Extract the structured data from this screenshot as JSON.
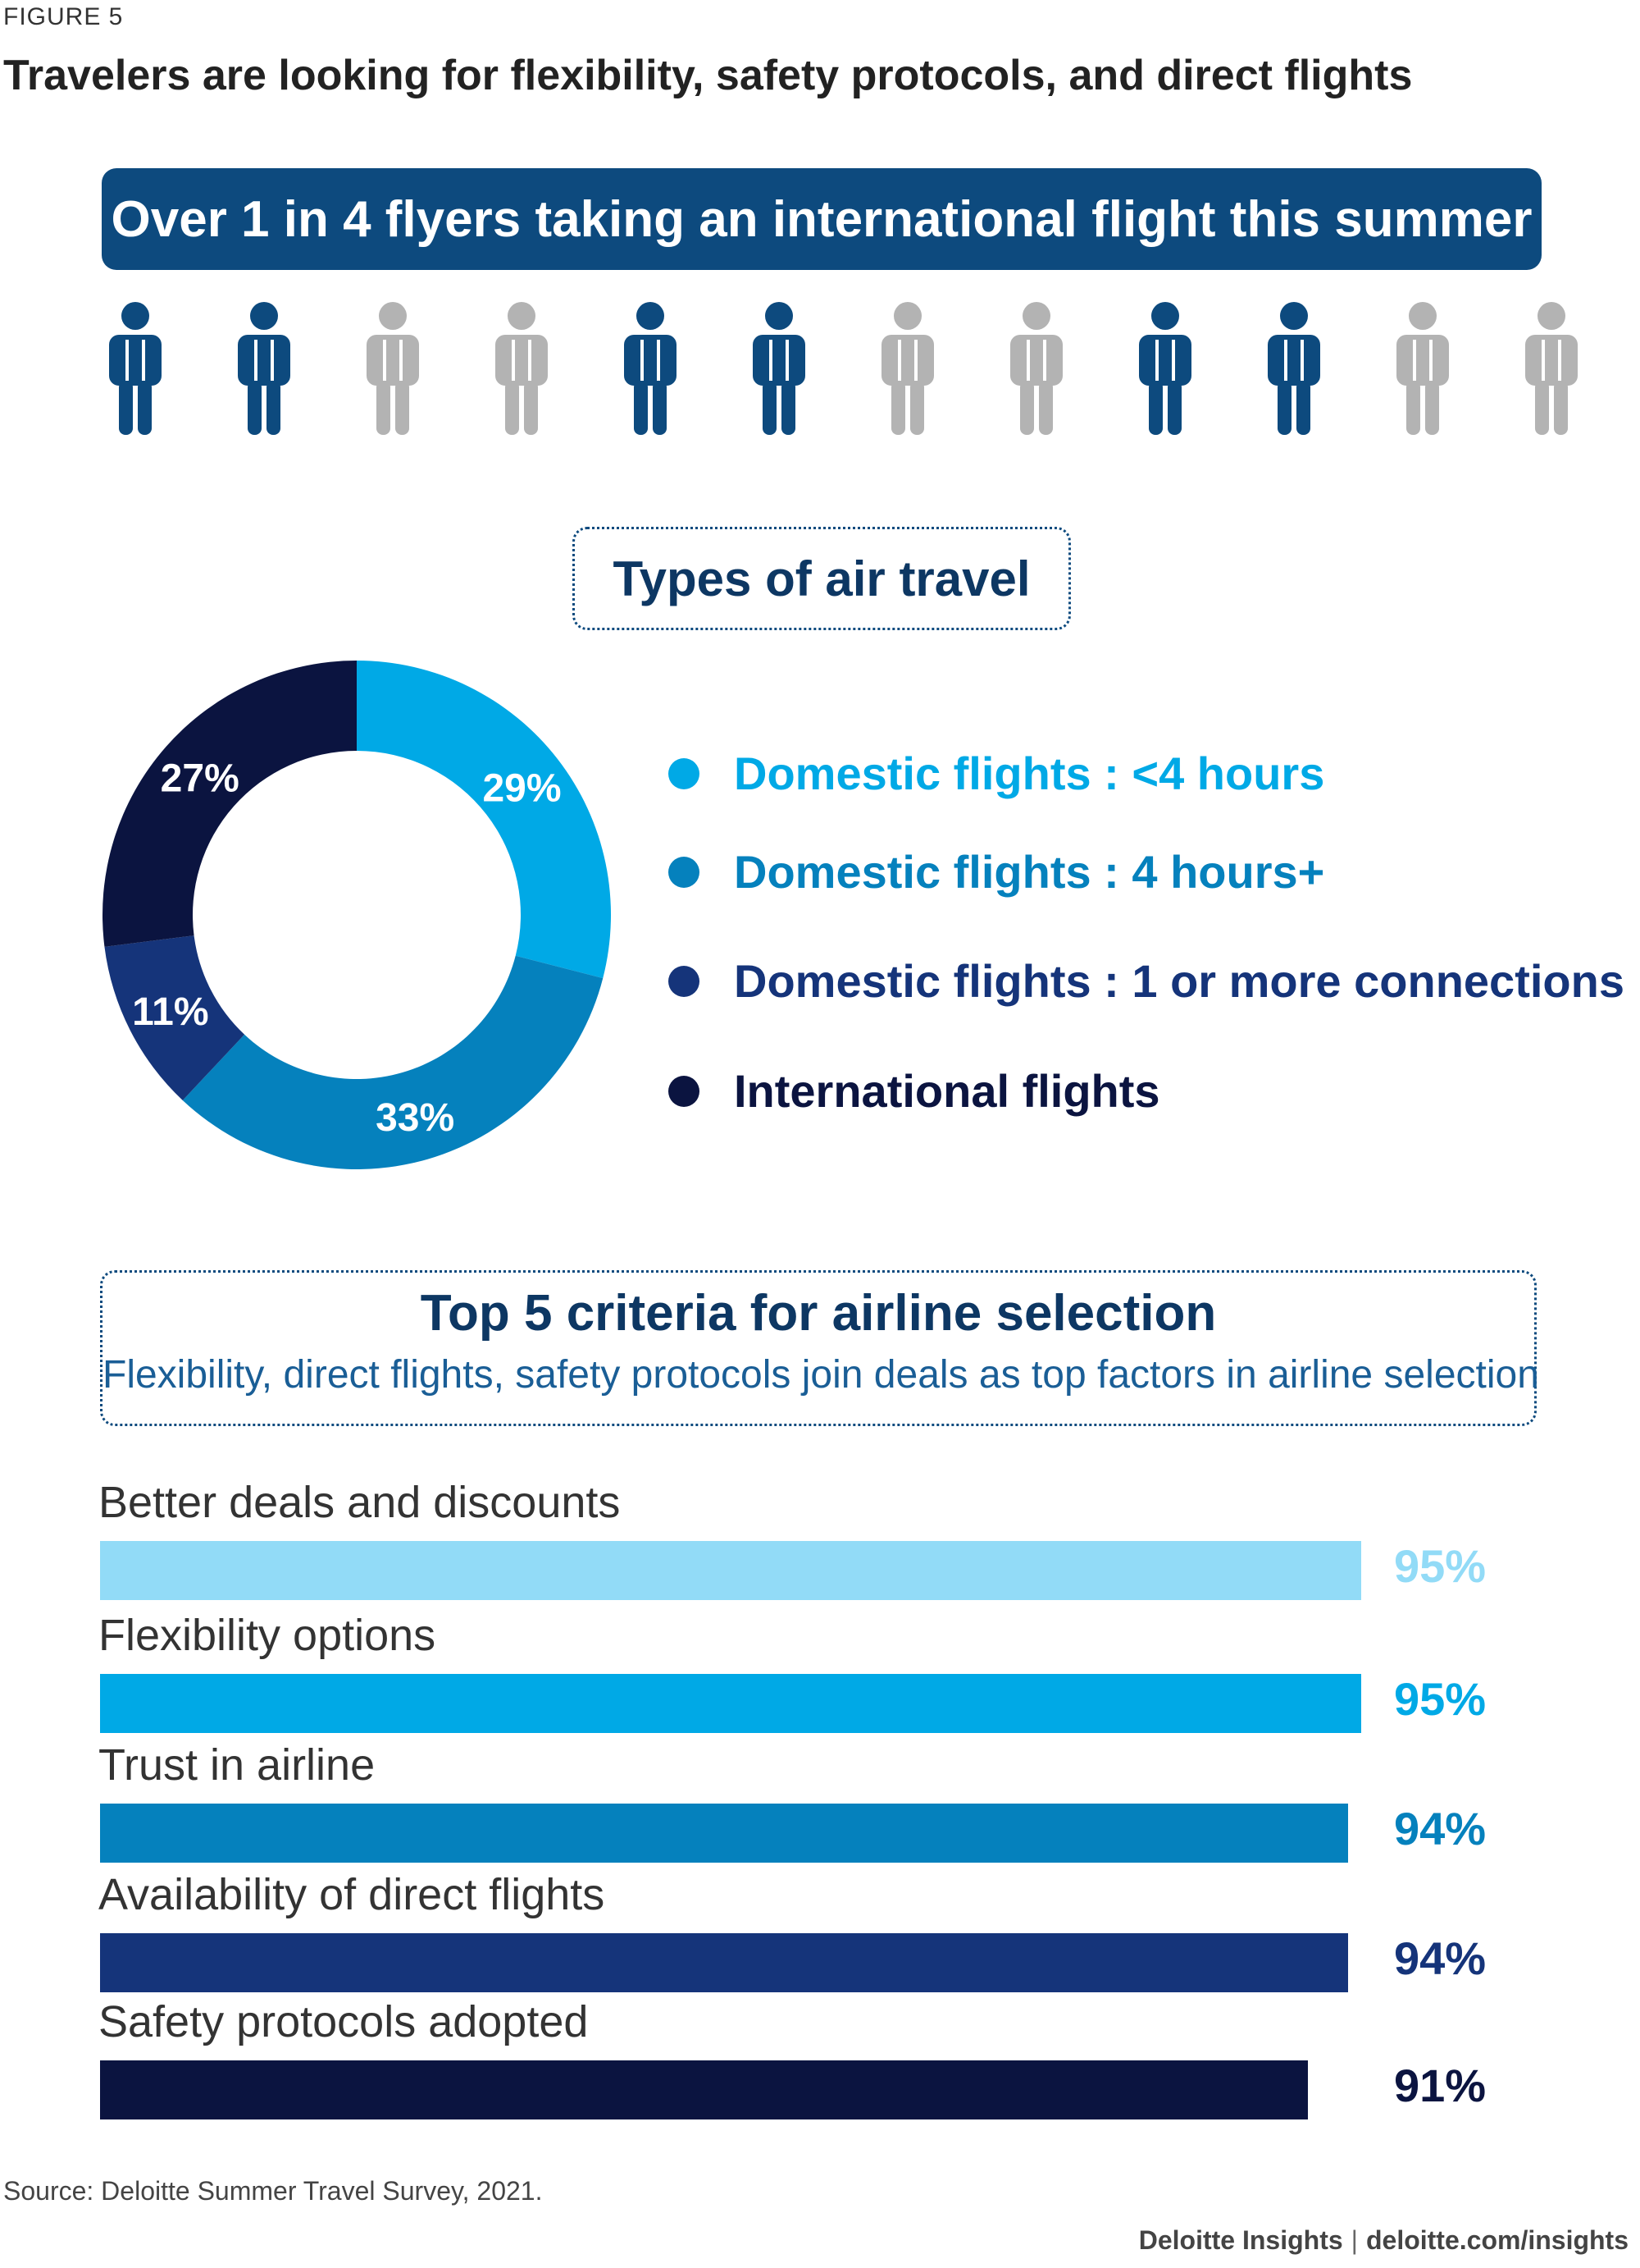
{
  "figure_label": "FIGURE 5",
  "title": "Travelers are looking for flexibility, safety protocols, and direct flights",
  "banner": "Over 1 in 4 flyers taking an international flight this summer",
  "people": {
    "pattern": [
      "dark",
      "dark",
      "gray",
      "gray",
      "dark",
      "dark",
      "gray",
      "gray",
      "dark",
      "dark",
      "gray",
      "gray"
    ],
    "colors": {
      "dark": "#0d4a7e",
      "gray": "#b3b3b3"
    }
  },
  "types_title": "Types of air travel",
  "criteria_title": "Top 5 criteria for airline selection",
  "criteria_subtitle": "Flexibility, direct flights, safety protocols join deals as top factors in airline selection",
  "source": "Source: Deloitte Summer Travel Survey, 2021.",
  "credit": {
    "brand": "Deloitte Insights",
    "site": "deloitte.com/insights"
  },
  "chart_data": [
    {
      "type": "pie",
      "title": "Types of air travel",
      "categories": [
        "Domestic flights : <4 hours",
        "Domestic flights : 4 hours+",
        "Domestic flights : 1 or more connections",
        "International flights"
      ],
      "values": [
        29,
        33,
        11,
        27
      ],
      "labels": [
        "29%",
        "33%",
        "11%",
        "27%"
      ],
      "colors": [
        "#00a9e6",
        "#0581bd",
        "#15347a",
        "#0b1440"
      ],
      "legend": "right"
    },
    {
      "type": "bar",
      "orientation": "horizontal",
      "title": "Top 5 criteria for airline selection",
      "categories": [
        "Better deals and discounts",
        "Flexibility options",
        "Trust in airline",
        "Availability of direct flights",
        "Safety protocols adopted"
      ],
      "values": [
        95,
        95,
        94,
        94,
        91
      ],
      "labels": [
        "95%",
        "95%",
        "94%",
        "94%",
        "91%"
      ],
      "colors": [
        "#92dbf7",
        "#00a9e6",
        "#0581bd",
        "#15347a",
        "#0b1440"
      ],
      "xlim": [
        0,
        100
      ]
    }
  ]
}
